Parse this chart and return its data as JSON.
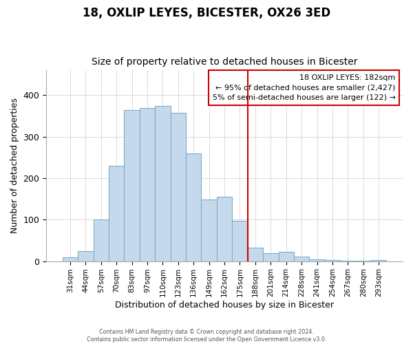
{
  "title": "18, OXLIP LEYES, BICESTER, OX26 3ED",
  "subtitle": "Size of property relative to detached houses in Bicester",
  "xlabel": "Distribution of detached houses by size in Bicester",
  "ylabel": "Number of detached properties",
  "bar_labels": [
    "31sqm",
    "44sqm",
    "57sqm",
    "70sqm",
    "83sqm",
    "97sqm",
    "110sqm",
    "123sqm",
    "136sqm",
    "149sqm",
    "162sqm",
    "175sqm",
    "188sqm",
    "201sqm",
    "214sqm",
    "228sqm",
    "241sqm",
    "254sqm",
    "267sqm",
    "280sqm",
    "293sqm"
  ],
  "bar_values": [
    10,
    25,
    100,
    230,
    365,
    370,
    375,
    357,
    260,
    148,
    155,
    97,
    33,
    20,
    22,
    11,
    4,
    2,
    1,
    1,
    2
  ],
  "bar_color": "#c6d9ec",
  "bar_edge_color": "#7aafc8",
  "vline_color": "#cc0000",
  "ylim": [
    0,
    460
  ],
  "annotation_title": "18 OXLIP LEYES: 182sqm",
  "annotation_line1": "← 95% of detached houses are smaller (2,427)",
  "annotation_line2": "5% of semi-detached houses are larger (122) →",
  "footer_line1": "Contains HM Land Registry data © Crown copyright and database right 2024.",
  "footer_line2": "Contains public sector information licensed under the Open Government Licence v3.0.",
  "title_fontsize": 12,
  "subtitle_fontsize": 10,
  "tick_fontsize": 7.5,
  "ylabel_fontsize": 9,
  "xlabel_fontsize": 9
}
